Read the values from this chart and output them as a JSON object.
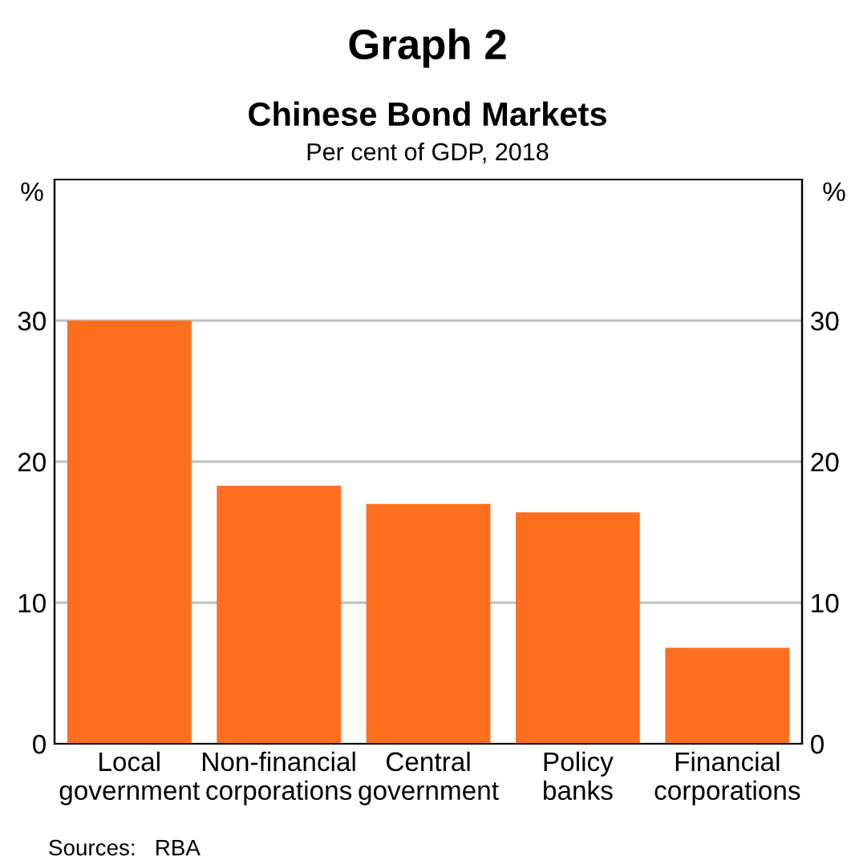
{
  "chart_data": {
    "type": "bar",
    "title": "Graph 2",
    "subtitle": "Chinese Bond Markets\nPer cent of GDP, 2018",
    "ylabel": "%",
    "y2label": "%",
    "categories": [
      "Local\ngovernment",
      "Non-financial\ncorporations",
      "Central\ngovernment",
      "Policy\nbanks",
      "Financial\ncorporations"
    ],
    "values": [
      30,
      18.3,
      17,
      16.4,
      6.8
    ],
    "color": "#ff6f20",
    "ylim": [
      0,
      40
    ],
    "yticks": [
      0,
      10,
      20,
      30
    ],
    "y2lim": [
      0,
      40
    ],
    "y2ticks": [
      0,
      10,
      20,
      30
    ],
    "grid": "y",
    "legend": false,
    "annotations": [
      "Sources:   RBA"
    ]
  }
}
